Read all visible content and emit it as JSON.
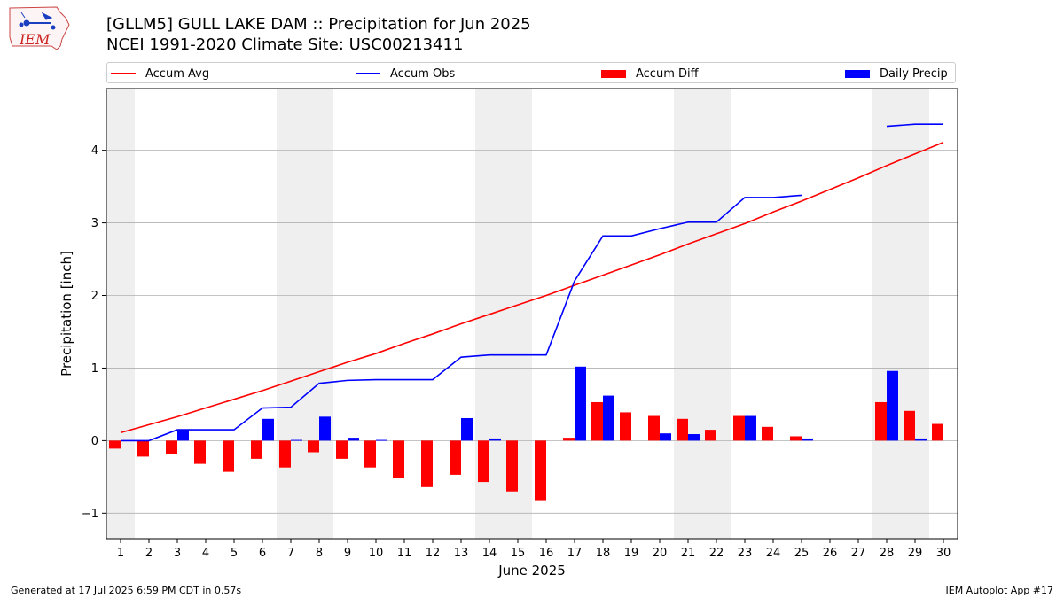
{
  "header": {
    "title_line1": "[GLLM5] GULL LAKE DAM :: Precipitation for Jun 2025",
    "title_line2": "NCEI 1991-2020 Climate Site: USC00213411"
  },
  "logo": {
    "text": "IEM",
    "color": "#cc2222"
  },
  "footer": {
    "left": "Generated at 17 Jul 2025 6:59 PM CDT in 0.57s",
    "right": "IEM Autoplot App #17"
  },
  "chart_data": {
    "type": "bar",
    "xlabel": "June 2025",
    "ylabel": "Precipitation [inch]",
    "x": [
      1,
      2,
      3,
      4,
      5,
      6,
      7,
      8,
      9,
      10,
      11,
      12,
      13,
      14,
      15,
      16,
      17,
      18,
      19,
      20,
      21,
      22,
      23,
      24,
      25,
      26,
      27,
      28,
      29,
      30
    ],
    "xlim": [
      0.5,
      30.5
    ],
    "ylim": [
      -1.35,
      4.85
    ],
    "yticks": [
      -1,
      0,
      1,
      2,
      3,
      4
    ],
    "ytick_labels": [
      "−1",
      "0",
      "1",
      "2",
      "3",
      "4"
    ],
    "grid": "horizontal",
    "weekend_shading": [
      [
        0.5,
        1.5
      ],
      [
        6.5,
        8.5
      ],
      [
        13.5,
        15.5
      ],
      [
        20.5,
        22.5
      ],
      [
        27.5,
        29.5
      ]
    ],
    "legend_placement": "top",
    "colors": {
      "accum_avg": "#ff0000",
      "accum_obs": "#0000ff",
      "accum_diff": "#ff0000",
      "daily_precip": "#0000ff",
      "shade": "#efefef",
      "grid": "#b0b0b0"
    },
    "series": [
      {
        "name": "Accum Avg",
        "kind": "line",
        "values": [
          0.11,
          0.22,
          0.33,
          0.45,
          0.57,
          0.69,
          0.82,
          0.95,
          1.08,
          1.2,
          1.34,
          1.47,
          1.61,
          1.74,
          1.87,
          2.0,
          2.14,
          2.28,
          2.42,
          2.56,
          2.71,
          2.85,
          2.99,
          3.15,
          3.3,
          3.46,
          3.62,
          3.79,
          3.95,
          4.11
        ]
      },
      {
        "name": "Accum Obs",
        "kind": "line",
        "values": [
          0.0,
          0.0,
          0.15,
          0.15,
          0.15,
          0.45,
          0.46,
          0.79,
          0.83,
          0.84,
          0.84,
          0.84,
          1.15,
          1.18,
          1.18,
          1.18,
          2.2,
          2.82,
          2.82,
          2.92,
          3.01,
          3.01,
          3.35,
          3.35,
          3.38,
          null,
          null,
          4.33,
          4.36,
          4.36
        ]
      },
      {
        "name": "Accum Diff",
        "kind": "bar",
        "values": [
          -0.11,
          -0.22,
          -0.18,
          -0.32,
          -0.43,
          -0.25,
          -0.37,
          -0.16,
          -0.25,
          -0.37,
          -0.51,
          -0.64,
          -0.47,
          -0.57,
          -0.7,
          -0.82,
          0.04,
          0.53,
          0.39,
          0.34,
          0.3,
          0.15,
          0.34,
          0.19,
          0.06,
          null,
          null,
          0.53,
          0.41,
          0.23
        ]
      },
      {
        "name": "Daily Precip",
        "kind": "bar",
        "values": [
          0.0,
          0.0,
          0.15,
          0.0,
          0.0,
          0.3,
          0.01,
          0.33,
          0.04,
          0.01,
          0.0,
          0.0,
          0.31,
          0.03,
          0.0,
          0.0,
          1.02,
          0.62,
          0.0,
          0.1,
          0.09,
          0.0,
          0.34,
          0.0,
          0.03,
          null,
          null,
          0.96,
          0.03,
          0.0
        ]
      }
    ]
  }
}
